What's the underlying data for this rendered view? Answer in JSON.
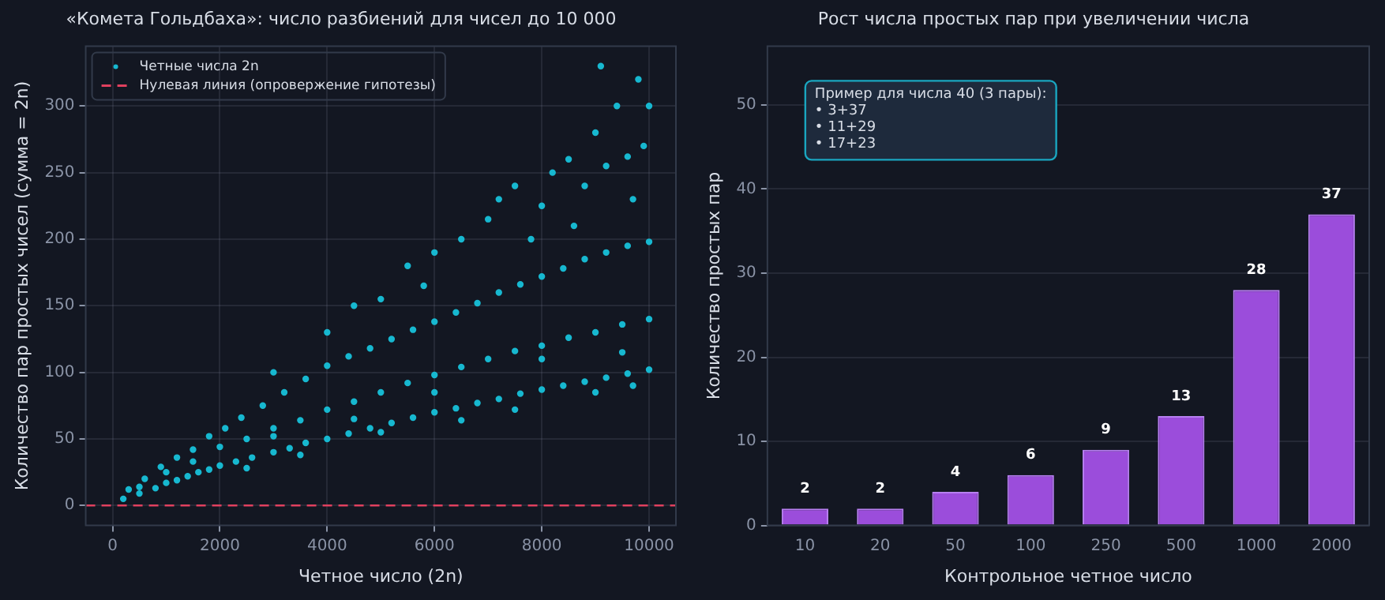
{
  "chart_data": [
    {
      "type": "scatter",
      "title": "«Комета Гольдбаха»: число разбиений для чисел до 10 000",
      "xlabel": "Четное число (2n)",
      "ylabel": "Количество пар простых чисел (сумма = 2n)",
      "xlim": [
        -500,
        10500
      ],
      "xticks": [
        0,
        2000,
        4000,
        6000,
        8000,
        10000
      ],
      "ylim": [
        -15,
        345
      ],
      "yticks": [
        0,
        50,
        100,
        150,
        200,
        250,
        300
      ],
      "grid": true,
      "legend": "top left",
      "marker": "circle",
      "ref_lines": [
        {
          "axis": "y",
          "value": 0,
          "label": "Нулевая линия (опровержение гипотезы)",
          "color": "#e0405e",
          "line_style": "dashed"
        }
      ],
      "series": [
        {
          "name": "Четные числа 2n",
          "color": "#17b8d0",
          "x": [
            200,
            500,
            800,
            1000,
            1200,
            1400,
            1600,
            1800,
            2000,
            2300,
            2600,
            3000,
            3300,
            3600,
            4000,
            4400,
            4800,
            5200,
            5600,
            6000,
            6400,
            6800,
            7200,
            7600,
            8000,
            8400,
            8800,
            9200,
            9600,
            10000,
            500,
            1000,
            1500,
            2000,
            2500,
            3000,
            3500,
            4000,
            4500,
            5000,
            5500,
            6000,
            6500,
            7000,
            7500,
            8000,
            8500,
            9000,
            9500,
            10000,
            300,
            600,
            900,
            1200,
            1500,
            1800,
            2100,
            2400,
            2800,
            3200,
            3600,
            4000,
            4400,
            4800,
            5200,
            5600,
            6000,
            6400,
            6800,
            7200,
            7600,
            8000,
            8400,
            8800,
            9200,
            9600,
            10000,
            3000,
            4000,
            5000,
            5500,
            6000,
            6500,
            7000,
            7200,
            7500,
            8000,
            8200,
            8500,
            8800,
            9000,
            9200,
            9400,
            9600,
            9800,
            9900,
            10000,
            9100,
            4500,
            5800,
            7800,
            8600,
            9700,
            2500,
            3500,
            5000,
            6500,
            7500,
            9000,
            9700,
            8000,
            9500,
            6000,
            4500,
            3000
          ],
          "values": [
            5,
            9,
            13,
            17,
            19,
            22,
            25,
            27,
            30,
            33,
            36,
            40,
            43,
            47,
            50,
            54,
            58,
            62,
            66,
            70,
            73,
            77,
            80,
            84,
            87,
            90,
            93,
            96,
            99,
            102,
            14,
            25,
            33,
            44,
            50,
            58,
            64,
            72,
            78,
            85,
            92,
            98,
            104,
            110,
            116,
            120,
            126,
            130,
            136,
            140,
            12,
            20,
            29,
            36,
            42,
            52,
            58,
            66,
            75,
            85,
            95,
            105,
            112,
            118,
            125,
            132,
            138,
            145,
            152,
            160,
            166,
            172,
            178,
            185,
            190,
            195,
            198,
            100,
            130,
            155,
            180,
            190,
            200,
            215,
            230,
            240,
            225,
            250,
            260,
            240,
            280,
            255,
            300,
            262,
            320,
            270,
            300,
            330,
            150,
            165,
            200,
            210,
            230,
            28,
            38,
            55,
            64,
            72,
            85,
            90,
            110,
            115,
            85,
            65,
            52
          ]
        }
      ]
    },
    {
      "type": "bar",
      "title": "Рост числа простых пар при увеличении числа",
      "xlabel": "Контрольное четное число",
      "ylabel": "Количество простых пар",
      "categories": [
        "10",
        "20",
        "50",
        "100",
        "250",
        "500",
        "1000",
        "2000"
      ],
      "values": [
        2,
        2,
        4,
        6,
        9,
        13,
        28,
        37
      ],
      "color": "#9b4ddb",
      "ylim": [
        0,
        57
      ],
      "yticks": [
        0,
        10,
        20,
        30,
        40,
        50
      ],
      "grid": "y",
      "data_labels": true,
      "annotations": [
        "Пример для числа 40 (3 пары):\n• 3+37\n• 11+29\n• 17+23"
      ]
    }
  ]
}
